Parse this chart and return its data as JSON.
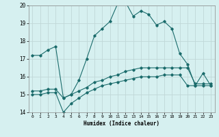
{
  "xlabel": "Humidex (Indice chaleur)",
  "background_color": "#d6f0f0",
  "grid_color": "#c0d8d8",
  "line_color": "#1a6b6b",
  "xlim": [
    -0.5,
    23.5
  ],
  "ylim": [
    14,
    20
  ],
  "yticks": [
    14,
    15,
    16,
    17,
    18,
    19,
    20
  ],
  "xticks": [
    0,
    1,
    2,
    3,
    4,
    5,
    6,
    7,
    8,
    9,
    10,
    11,
    12,
    13,
    14,
    15,
    16,
    17,
    18,
    19,
    20,
    21,
    22,
    23
  ],
  "series1_x": [
    0,
    1,
    2,
    3,
    4,
    5,
    6,
    7,
    8,
    9,
    10,
    11,
    12,
    13,
    14,
    15,
    16,
    17,
    18,
    19,
    20,
    21,
    22,
    23
  ],
  "series1_y": [
    17.2,
    17.2,
    17.5,
    17.7,
    14.8,
    15.0,
    15.8,
    17.0,
    18.3,
    18.7,
    19.1,
    20.1,
    20.2,
    19.4,
    19.7,
    19.5,
    18.9,
    19.1,
    18.7,
    17.3,
    16.7,
    15.5,
    16.2,
    15.5
  ],
  "series2_x": [
    0,
    1,
    2,
    3,
    4,
    5,
    6,
    7,
    8,
    9,
    10,
    11,
    12,
    13,
    14,
    15,
    16,
    17,
    18,
    19,
    20,
    21,
    22,
    23
  ],
  "series2_y": [
    15.2,
    15.2,
    15.3,
    15.3,
    14.8,
    15.0,
    15.2,
    15.4,
    15.7,
    15.8,
    16.0,
    16.1,
    16.3,
    16.4,
    16.5,
    16.5,
    16.5,
    16.5,
    16.5,
    16.5,
    16.5,
    15.6,
    15.6,
    15.6
  ],
  "series3_x": [
    0,
    1,
    2,
    3,
    4,
    5,
    6,
    7,
    8,
    9,
    10,
    11,
    12,
    13,
    14,
    15,
    16,
    17,
    18,
    19,
    20,
    21,
    22,
    23
  ],
  "series3_y": [
    15.0,
    15.0,
    15.1,
    15.1,
    14.0,
    14.5,
    14.8,
    15.1,
    15.3,
    15.5,
    15.6,
    15.7,
    15.8,
    15.9,
    16.0,
    16.0,
    16.0,
    16.1,
    16.1,
    16.1,
    15.5,
    15.5,
    15.5,
    15.5
  ]
}
